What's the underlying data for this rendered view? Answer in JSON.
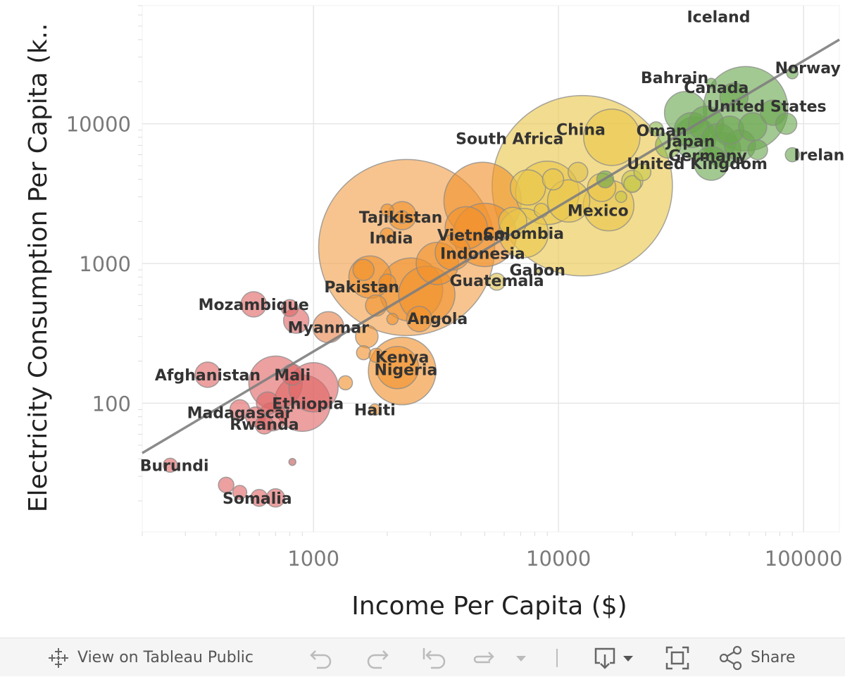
{
  "chart_data": {
    "type": "scatter",
    "title": "",
    "xlabel": "Income Per Capita ($)",
    "ylabel": "Electricity Consumption Per Capita (k..",
    "x_scale": "log",
    "y_scale": "log",
    "xlim": [
      200,
      140000
    ],
    "ylim": [
      12,
      70000
    ],
    "x_ticks": [
      1000,
      10000,
      100000
    ],
    "x_tick_labels": [
      "1000",
      "10000",
      "100000"
    ],
    "y_ticks": [
      100,
      1000,
      10000
    ],
    "y_tick_labels": [
      "100",
      "1000",
      "10000"
    ],
    "grid": true,
    "legend": "none",
    "trend_line": {
      "x": [
        200,
        140000
      ],
      "y": [
        44,
        40000
      ]
    },
    "points": [
      {
        "label": "Iceland",
        "x": 45000,
        "y": 52000,
        "size": 0,
        "color": "#6aa84f"
      },
      {
        "label": "Bahrain",
        "x": 42000,
        "y": 19500,
        "size": 7,
        "color": "#6aa84f"
      },
      {
        "label": "Norway",
        "x": 90000,
        "y": 23000,
        "size": 8,
        "color": "#6aa84f"
      },
      {
        "label": "Canada",
        "x": 52000,
        "y": 15500,
        "size": 20,
        "color": "#6aa84f"
      },
      {
        "label": "United States",
        "x": 58000,
        "y": 12800,
        "size": 60,
        "color": "#6aa84f"
      },
      {
        "label": "Oman",
        "x": 25000,
        "y": 9200,
        "size": 10,
        "color": "#8db84a"
      },
      {
        "label": "Japan",
        "x": 36000,
        "y": 7900,
        "size": 30,
        "color": "#6aa84f"
      },
      {
        "label": "Germany",
        "x": 47000,
        "y": 6500,
        "size": 25,
        "color": "#6aa84f"
      },
      {
        "label": "Ireland",
        "x": 90000,
        "y": 6000,
        "size": 10,
        "color": "#6aa84f"
      },
      {
        "label": "United Kingdom",
        "x": 42000,
        "y": 5200,
        "size": 24,
        "color": "#6aa84f"
      },
      {
        "label": "China",
        "x": 12500,
        "y": 3600,
        "size": 128,
        "color": "#eac74a"
      },
      {
        "label": "South Africa",
        "x": 12000,
        "y": 4500,
        "size": 14,
        "color": "#e0c04a"
      },
      {
        "label": "Mexico",
        "x": 16000,
        "y": 2600,
        "size": 36,
        "color": "#e8c54c"
      },
      {
        "label": "Vietnam",
        "x": 5000,
        "y": 1600,
        "size": 45,
        "color": "#f0922b"
      },
      {
        "label": "Tajikistan",
        "x": 2300,
        "y": 2150,
        "size": 9,
        "color": "#f0922b"
      },
      {
        "label": "India",
        "x": 2400,
        "y": 1300,
        "size": 125,
        "color": "#f2a04a"
      },
      {
        "label": "Indonesia",
        "x": 4900,
        "y": 2800,
        "size": 55,
        "color": "#f0922b"
      },
      {
        "label": "Colombia",
        "x": 7200,
        "y": 1650,
        "size": 35,
        "color": "#eac74a"
      },
      {
        "label": "Gabon",
        "x": 8200,
        "y": 880,
        "size": 4,
        "color": "#c9b240"
      },
      {
        "label": "Guatemala",
        "x": 5600,
        "y": 740,
        "size": 12,
        "color": "#dcc04a"
      },
      {
        "label": "Pakistan",
        "x": 2500,
        "y": 650,
        "size": 45,
        "color": "#f0922b"
      },
      {
        "label": "Angola",
        "x": 2700,
        "y": 400,
        "size": 18,
        "color": "#f0922b"
      },
      {
        "label": "Mozambique",
        "x": 570,
        "y": 510,
        "size": 18,
        "color": "#e06666"
      },
      {
        "label": "Myanmar",
        "x": 1150,
        "y": 350,
        "size": 22,
        "color": "#e8854a"
      },
      {
        "label": "Kenya",
        "x": 2300,
        "y": 170,
        "size": 48,
        "color": "#f0922b"
      },
      {
        "label": "Nigeria",
        "x": 2200,
        "y": 180,
        "size": 30,
        "color": "#f0922b"
      },
      {
        "label": "Afghanistan",
        "x": 370,
        "y": 160,
        "size": 18,
        "color": "#e06666"
      },
      {
        "label": "Mali",
        "x": 820,
        "y": 160,
        "size": 15,
        "color": "#e06666"
      },
      {
        "label": "Ethiopia",
        "x": 900,
        "y": 100,
        "size": 40,
        "color": "#e06666"
      },
      {
        "label": "Haiti",
        "x": 1780,
        "y": 90,
        "size": 8,
        "color": "#f0922b"
      },
      {
        "label": "Madagascar",
        "x": 500,
        "y": 90,
        "size": 14,
        "color": "#e06666"
      },
      {
        "label": "Rwanda",
        "x": 630,
        "y": 70,
        "size": 13,
        "color": "#e06666"
      },
      {
        "label": "Burundi",
        "x": 260,
        "y": 36,
        "size": 10,
        "color": "#e06666"
      },
      {
        "label": "Somalia",
        "x": 700,
        "y": 21,
        "size": 13,
        "color": "#e06666"
      }
    ],
    "extra_points": [
      {
        "x": 1350,
        "y": 140,
        "size": 10,
        "color": "#f0922b"
      },
      {
        "x": 1650,
        "y": 300,
        "size": 16,
        "color": "#f0922b"
      },
      {
        "x": 1600,
        "y": 230,
        "size": 10,
        "color": "#f0922b"
      },
      {
        "x": 800,
        "y": 480,
        "size": 12,
        "color": "#e06666"
      },
      {
        "x": 850,
        "y": 390,
        "size": 18,
        "color": "#e06666"
      },
      {
        "x": 700,
        "y": 140,
        "size": 38,
        "color": "#e06666"
      },
      {
        "x": 650,
        "y": 100,
        "size": 16,
        "color": "#e06666"
      },
      {
        "x": 580,
        "y": 80,
        "size": 14,
        "color": "#e06666"
      },
      {
        "x": 680,
        "y": 80,
        "size": 20,
        "color": "#e06666"
      },
      {
        "x": 1000,
        "y": 130,
        "size": 35,
        "color": "#e06666"
      },
      {
        "x": 440,
        "y": 26,
        "size": 11,
        "color": "#e06666"
      },
      {
        "x": 500,
        "y": 23,
        "size": 10,
        "color": "#e06666"
      },
      {
        "x": 600,
        "y": 21,
        "size": 12,
        "color": "#e06666"
      },
      {
        "x": 820,
        "y": 38,
        "size": 5,
        "color": "#c25a5a"
      },
      {
        "x": 1700,
        "y": 800,
        "size": 30,
        "color": "#f0922b"
      },
      {
        "x": 2300,
        "y": 2200,
        "size": 20,
        "color": "#f0922b"
      },
      {
        "x": 2000,
        "y": 2400,
        "size": 9,
        "color": "#f0922b"
      },
      {
        "x": 2000,
        "y": 1600,
        "size": 10,
        "color": "#f0922b"
      },
      {
        "x": 3200,
        "y": 1000,
        "size": 30,
        "color": "#f0922b"
      },
      {
        "x": 3700,
        "y": 1200,
        "size": 25,
        "color": "#f0922b"
      },
      {
        "x": 4200,
        "y": 1800,
        "size": 30,
        "color": "#f0922b"
      },
      {
        "x": 1600,
        "y": 900,
        "size": 15,
        "color": "#f0922b"
      },
      {
        "x": 2000,
        "y": 730,
        "size": 12,
        "color": "#f0922b"
      },
      {
        "x": 1800,
        "y": 500,
        "size": 15,
        "color": "#f0922b"
      },
      {
        "x": 2900,
        "y": 600,
        "size": 40,
        "color": "#f0922b"
      },
      {
        "x": 2100,
        "y": 400,
        "size": 8,
        "color": "#f0922b"
      },
      {
        "x": 1800,
        "y": 220,
        "size": 10,
        "color": "#f0922b"
      },
      {
        "x": 6500,
        "y": 2000,
        "size": 20,
        "color": "#eac74a"
      },
      {
        "x": 7500,
        "y": 3500,
        "size": 25,
        "color": "#eac74a"
      },
      {
        "x": 9500,
        "y": 4000,
        "size": 15,
        "color": "#eac74a"
      },
      {
        "x": 9000,
        "y": 3200,
        "size": 45,
        "color": "#eac74a"
      },
      {
        "x": 11000,
        "y": 2800,
        "size": 30,
        "color": "#eac74a"
      },
      {
        "x": 15000,
        "y": 3500,
        "size": 20,
        "color": "#eac74a"
      },
      {
        "x": 16500,
        "y": 8000,
        "size": 40,
        "color": "#eac74a"
      },
      {
        "x": 8500,
        "y": 2400,
        "size": 10,
        "color": "#eac74a"
      },
      {
        "x": 15500,
        "y": 4000,
        "size": 12,
        "color": "#6aa84f"
      },
      {
        "x": 18000,
        "y": 3000,
        "size": 8,
        "color": "#c8c84a"
      },
      {
        "x": 20000,
        "y": 3700,
        "size": 12,
        "color": "#c8c84a"
      },
      {
        "x": 22000,
        "y": 4500,
        "size": 12,
        "color": "#c8c84a"
      },
      {
        "x": 20000,
        "y": 3900,
        "size": 15,
        "color": "#c8c84a"
      },
      {
        "x": 28000,
        "y": 7000,
        "size": 18,
        "color": "#8db84a"
      },
      {
        "x": 33000,
        "y": 12000,
        "size": 30,
        "color": "#6aa84f"
      },
      {
        "x": 35000,
        "y": 9000,
        "size": 25,
        "color": "#6aa84f"
      },
      {
        "x": 40000,
        "y": 10000,
        "size": 25,
        "color": "#6aa84f"
      },
      {
        "x": 45000,
        "y": 7500,
        "size": 25,
        "color": "#6aa84f"
      },
      {
        "x": 55000,
        "y": 7000,
        "size": 22,
        "color": "#6aa84f"
      },
      {
        "x": 50000,
        "y": 9000,
        "size": 20,
        "color": "#6aa84f"
      },
      {
        "x": 62000,
        "y": 9500,
        "size": 20,
        "color": "#6aa84f"
      },
      {
        "x": 75000,
        "y": 12000,
        "size": 18,
        "color": "#6aa84f"
      },
      {
        "x": 85000,
        "y": 10000,
        "size": 15,
        "color": "#6aa84f"
      },
      {
        "x": 65000,
        "y": 6500,
        "size": 14,
        "color": "#6aa84f"
      }
    ]
  },
  "toolbar": {
    "view_on_public_label": "View on Tableau Public",
    "share_label": "Share"
  }
}
